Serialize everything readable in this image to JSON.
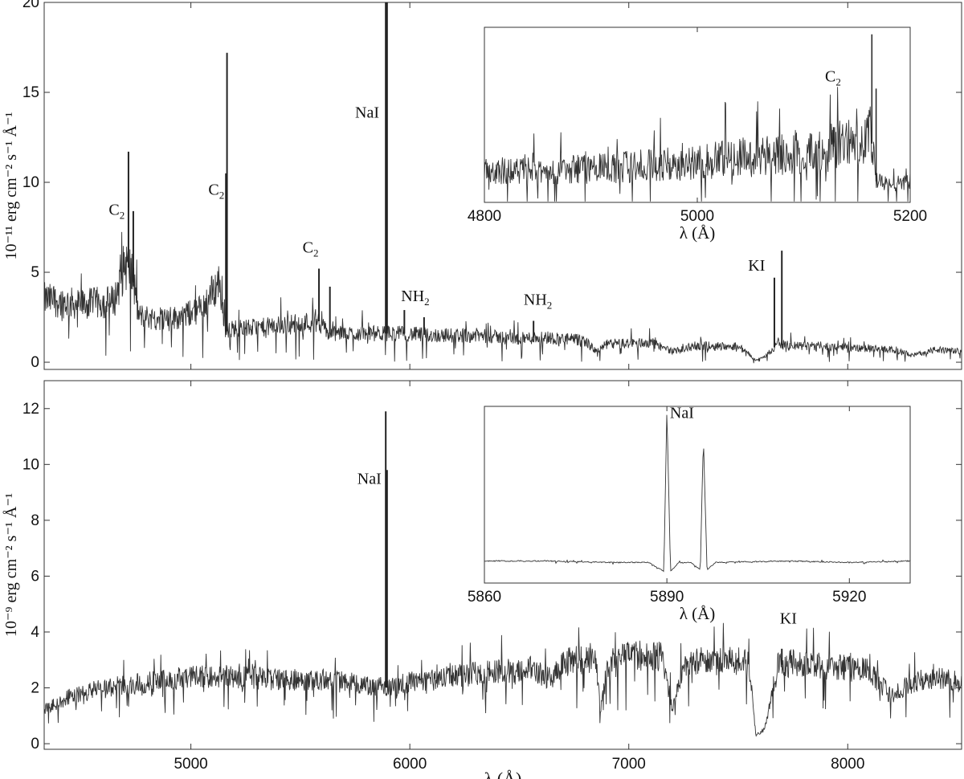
{
  "chart_data": [
    {
      "type": "line",
      "panel": "top",
      "ylabel": "10⁻¹¹ erg cm⁻² s⁻¹ Å⁻¹",
      "xlabel": "",
      "xlim": [
        4330,
        8520
      ],
      "ylim": [
        -0.4,
        20
      ],
      "xticks": [
        5000,
        6000,
        7000,
        8000
      ],
      "xtick_labels": [
        "",
        "",
        "",
        ""
      ],
      "yticks": [
        0,
        5,
        10,
        15,
        20
      ],
      "ytick_labels": [
        "0",
        "5",
        "10",
        "15",
        "20"
      ],
      "grid": false,
      "spectrum_approx": {
        "x": [
          4330,
          4500,
          4650,
          4700,
          4730,
          4760,
          4850,
          4950,
          5050,
          5130,
          5160,
          5200,
          5300,
          5450,
          5600,
          5620,
          5700,
          5850,
          5950,
          6100,
          6300,
          6500,
          6600,
          6800,
          6850,
          6900,
          7100,
          7200,
          7300,
          7500,
          7580,
          7620,
          7680,
          7750,
          7900,
          8000,
          8200,
          8300,
          8400,
          8520
        ],
        "y": [
          3.5,
          3.2,
          3.4,
          5.5,
          5.0,
          2.6,
          2.4,
          2.5,
          3.0,
          4.5,
          1.7,
          1.9,
          1.9,
          2.1,
          2.3,
          1.6,
          1.6,
          1.6,
          1.6,
          1.5,
          1.5,
          1.3,
          1.4,
          1.2,
          0.6,
          1.0,
          1.1,
          0.6,
          0.9,
          0.9,
          0.1,
          0.3,
          1.0,
          0.9,
          0.9,
          0.8,
          0.7,
          0.4,
          0.7,
          0.6
        ]
      },
      "emission_lines": [
        {
          "x": 4715,
          "y": 11.7
        },
        {
          "x": 4737,
          "y": 8.4
        },
        {
          "x": 5165,
          "y": 17.2
        },
        {
          "x": 5160,
          "y": 10.5
        },
        {
          "x": 5585,
          "y": 5.2
        },
        {
          "x": 5635,
          "y": 4.2
        },
        {
          "x": 5890,
          "y": 20
        },
        {
          "x": 5896,
          "y": 20
        },
        {
          "x": 5975,
          "y": 2.9
        },
        {
          "x": 6065,
          "y": 2.5
        },
        {
          "x": 6565,
          "y": 2.3
        },
        {
          "x": 7665,
          "y": 4.7
        },
        {
          "x": 7699,
          "y": 6.2
        }
      ],
      "annotations": [
        {
          "text": "C",
          "sub": "2",
          "x": 4625,
          "y": 8.2
        },
        {
          "text": "C",
          "sub": "2",
          "x": 5080,
          "y": 9.3
        },
        {
          "text": "C",
          "sub": "2",
          "x": 5510,
          "y": 6.1
        },
        {
          "text": "NaI",
          "x": 5750,
          "y": 13.6
        },
        {
          "text": "NH",
          "sub": "2",
          "x": 5960,
          "y": 3.4
        },
        {
          "text": "NH",
          "sub": "2",
          "x": 6520,
          "y": 3.2
        },
        {
          "text": "KI",
          "x": 7545,
          "y": 5.1
        }
      ],
      "inset": {
        "xlim": [
          4800,
          5200
        ],
        "ylim": [
          0,
          10
        ],
        "xticks": [
          4800,
          5000,
          5200
        ],
        "xtick_labels": [
          "4800",
          "5000",
          "5200"
        ],
        "xlabel": "λ (Å)",
        "annotation": {
          "text": "C",
          "sub": "2",
          "x": 5120,
          "y": 6.9
        },
        "emission_lines": [
          {
            "x": 5128,
            "y": 4.3
          },
          {
            "x": 5164,
            "y": 9.6
          },
          {
            "x": 5168,
            "y": 6.5
          }
        ],
        "spectrum_approx": {
          "x": [
            4800,
            4850,
            4900,
            4950,
            5000,
            5050,
            5100,
            5130,
            5150,
            5163,
            5168,
            5180,
            5200
          ],
          "y": [
            1.8,
            1.8,
            1.9,
            2.1,
            2.3,
            2.6,
            2.9,
            3.2,
            3.5,
            3.9,
            1.2,
            1.0,
            1.2
          ]
        }
      }
    },
    {
      "type": "line",
      "panel": "bottom",
      "ylabel": "10⁻⁹ erg cm⁻² s⁻¹ Å⁻¹",
      "xlabel": "λ (Å)",
      "xlim": [
        4330,
        8520
      ],
      "ylim": [
        -0.2,
        13
      ],
      "xticks": [
        5000,
        6000,
        7000,
        8000
      ],
      "xtick_labels": [
        "5000",
        "6000",
        "7000",
        "8000"
      ],
      "yticks": [
        0,
        2,
        4,
        6,
        8,
        10,
        12
      ],
      "ytick_labels": [
        "0",
        "2",
        "4",
        "6",
        "8",
        "10",
        "12"
      ],
      "grid": false,
      "spectrum_approx": {
        "x": [
          4330,
          4450,
          4600,
          4800,
          5000,
          5200,
          5400,
          5600,
          5800,
          5900,
          6000,
          6200,
          6400,
          6550,
          6650,
          6700,
          6850,
          6870,
          6900,
          7000,
          7150,
          7200,
          7250,
          7300,
          7400,
          7550,
          7580,
          7620,
          7660,
          7680,
          7750,
          7850,
          8000,
          8100,
          8200,
          8300,
          8400,
          8520
        ],
        "y": [
          1.2,
          1.7,
          2.0,
          2.2,
          2.4,
          2.4,
          2.3,
          2.3,
          2.1,
          2.0,
          2.2,
          2.4,
          2.6,
          2.7,
          2.3,
          2.9,
          3.1,
          1.2,
          2.6,
          3.2,
          3.1,
          1.3,
          2.7,
          3.0,
          3.0,
          2.9,
          0.3,
          0.5,
          2.1,
          2.8,
          2.9,
          2.8,
          2.7,
          2.6,
          1.7,
          2.2,
          2.4,
          2.2
        ]
      },
      "emission_lines": [
        {
          "x": 5890,
          "y": 11.9
        },
        {
          "x": 5896,
          "y": 9.8
        },
        {
          "x": 7699,
          "y": 3.4
        }
      ],
      "annotations": [
        {
          "text": "NaI",
          "x": 5760,
          "y": 9.3
        },
        {
          "text": "KI",
          "x": 7690,
          "y": 4.3
        }
      ],
      "inset": {
        "xlim": [
          5860,
          5930
        ],
        "ylim": [
          0,
          12
        ],
        "xticks": [
          5860,
          5890,
          5920
        ],
        "xtick_labels": [
          "5860",
          "5890",
          "5920"
        ],
        "xlabel": "λ (Å)",
        "annotation": {
          "text": "NaI",
          "x": 5890.5,
          "y": 11.2
        },
        "emission_lines": [
          {
            "x": 5890.0,
            "y": 11.6
          },
          {
            "x": 5896.0,
            "y": 10.0
          }
        ],
        "spectrum_approx": {
          "x": [
            5860,
            5870,
            5880,
            5887,
            5889.5,
            5890.0,
            5890.6,
            5892,
            5894,
            5895.5,
            5896.0,
            5896.6,
            5898,
            5910,
            5920,
            5930
          ],
          "y": [
            1.5,
            1.5,
            1.4,
            1.4,
            0.8,
            11.6,
            0.8,
            1.4,
            1.4,
            0.9,
            10.0,
            0.9,
            1.4,
            1.5,
            1.4,
            1.5
          ]
        }
      }
    }
  ]
}
